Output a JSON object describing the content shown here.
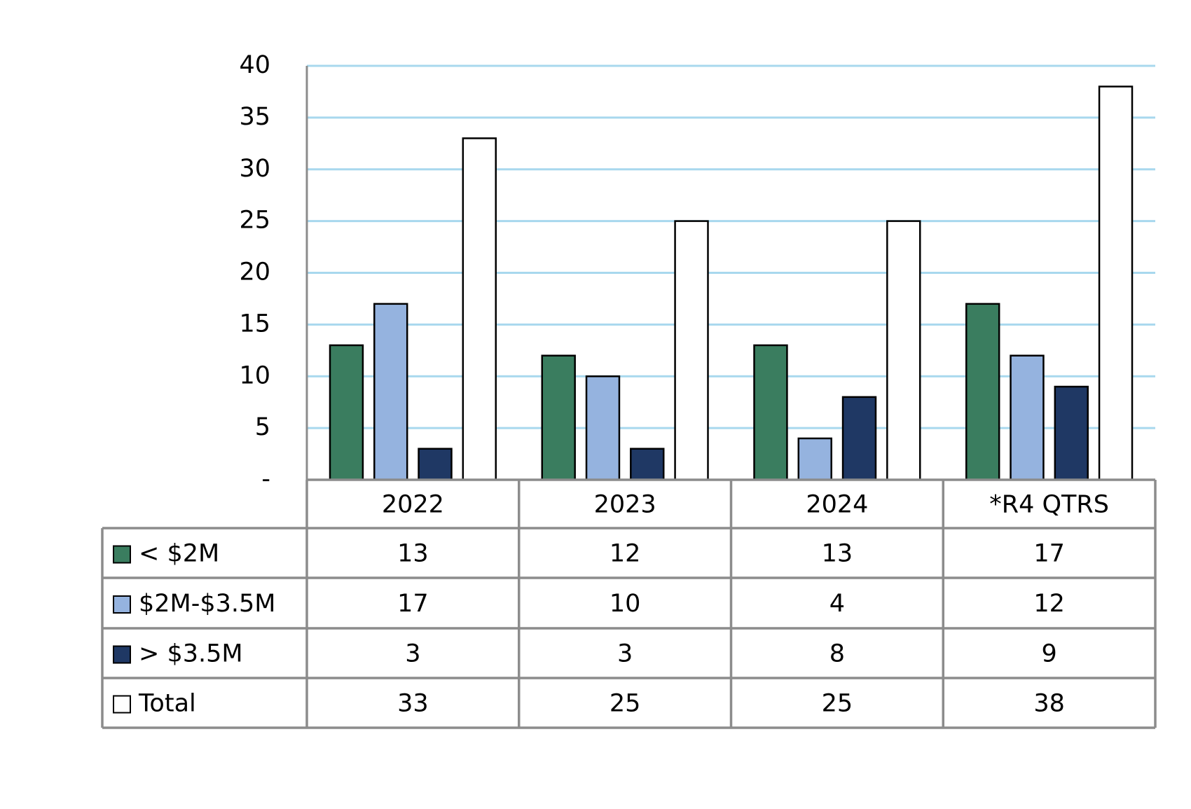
{
  "chart_data": {
    "type": "bar",
    "categories": [
      "2022",
      "2023",
      "2024",
      "*R4 QTRS"
    ],
    "series": [
      {
        "name": "< $2M",
        "color": "#3a7d5f",
        "values": [
          13,
          12,
          13,
          17
        ]
      },
      {
        "name": "$2M-$3.5M",
        "color": "#95b3df",
        "values": [
          17,
          10,
          4,
          12
        ]
      },
      {
        "name": "> $3.5M",
        "color": "#1f3864",
        "values": [
          3,
          3,
          8,
          9
        ]
      },
      {
        "name": "Total",
        "color": "#ffffff",
        "values": [
          33,
          25,
          25,
          38
        ]
      }
    ],
    "ylim": [
      0,
      40
    ],
    "yticks": [
      {
        "value": 0,
        "label": "-"
      },
      5,
      10,
      15,
      20,
      25,
      30,
      35,
      40
    ],
    "grid": true
  }
}
